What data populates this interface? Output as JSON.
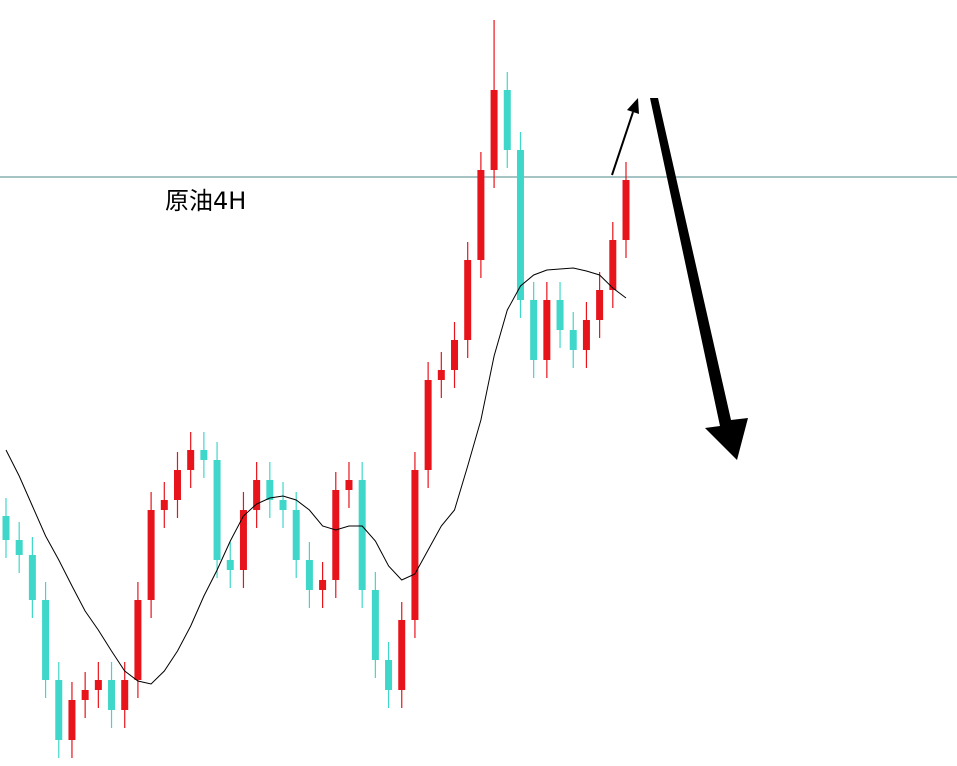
{
  "chart_data": {
    "type": "candlestick",
    "title": "原油4H",
    "ylim": [
      0,
      766
    ],
    "up_color": "#e8141c",
    "down_color": "#3fd7c9",
    "level": 589,
    "level_color": "#4d8a8a",
    "open": [
      250,
      226,
      211,
      166,
      86,
      26,
      66,
      76,
      86,
      56,
      86,
      166,
      256,
      266,
      296,
      316,
      306,
      206,
      196,
      256,
      286,
      266,
      256,
      206,
      176,
      186,
      276,
      286,
      176,
      106,
      76,
      146,
      296,
      386,
      396,
      426,
      506,
      596,
      676,
      616,
      466,
      406,
      466,
      436,
      416,
      446,
      476,
      526
    ],
    "high": [
      268,
      244,
      229,
      184,
      104,
      84,
      94,
      104,
      104,
      104,
      184,
      274,
      284,
      314,
      334,
      334,
      324,
      224,
      274,
      304,
      304,
      284,
      274,
      224,
      204,
      294,
      304,
      304,
      194,
      124,
      164,
      314,
      404,
      414,
      444,
      524,
      614,
      746,
      694,
      634,
      484,
      484,
      484,
      454,
      464,
      494,
      544,
      604
    ],
    "low": [
      208,
      193,
      148,
      68,
      8,
      8,
      48,
      58,
      38,
      38,
      68,
      148,
      238,
      248,
      278,
      288,
      188,
      178,
      178,
      238,
      248,
      238,
      188,
      158,
      158,
      168,
      258,
      158,
      88,
      58,
      58,
      128,
      278,
      368,
      378,
      408,
      488,
      578,
      598,
      448,
      388,
      388,
      418,
      398,
      398,
      428,
      458,
      508
    ],
    "close": [
      226,
      211,
      166,
      86,
      26,
      66,
      76,
      86,
      56,
      86,
      166,
      256,
      266,
      296,
      316,
      306,
      206,
      196,
      256,
      286,
      266,
      256,
      206,
      176,
      186,
      276,
      286,
      176,
      106,
      76,
      146,
      296,
      386,
      396,
      426,
      506,
      596,
      676,
      616,
      466,
      406,
      466,
      436,
      416,
      446,
      476,
      526,
      586
    ],
    "series": [
      {
        "color": "#000000",
        "values": [
          316,
          290,
          260,
          230,
          206,
          180,
          155,
          136,
          115,
          95,
          85,
          82,
          95,
          115,
          140,
          170,
          196,
          225,
          250,
          262,
          268,
          270,
          266,
          256,
          240,
          236,
          240,
          240,
          225,
          200,
          186,
          192,
          216,
          240,
          256,
          300,
          346,
          410,
          456,
          480,
          491,
          496,
          497,
          498,
          495,
          491,
          478,
          468
        ]
      }
    ]
  }
}
